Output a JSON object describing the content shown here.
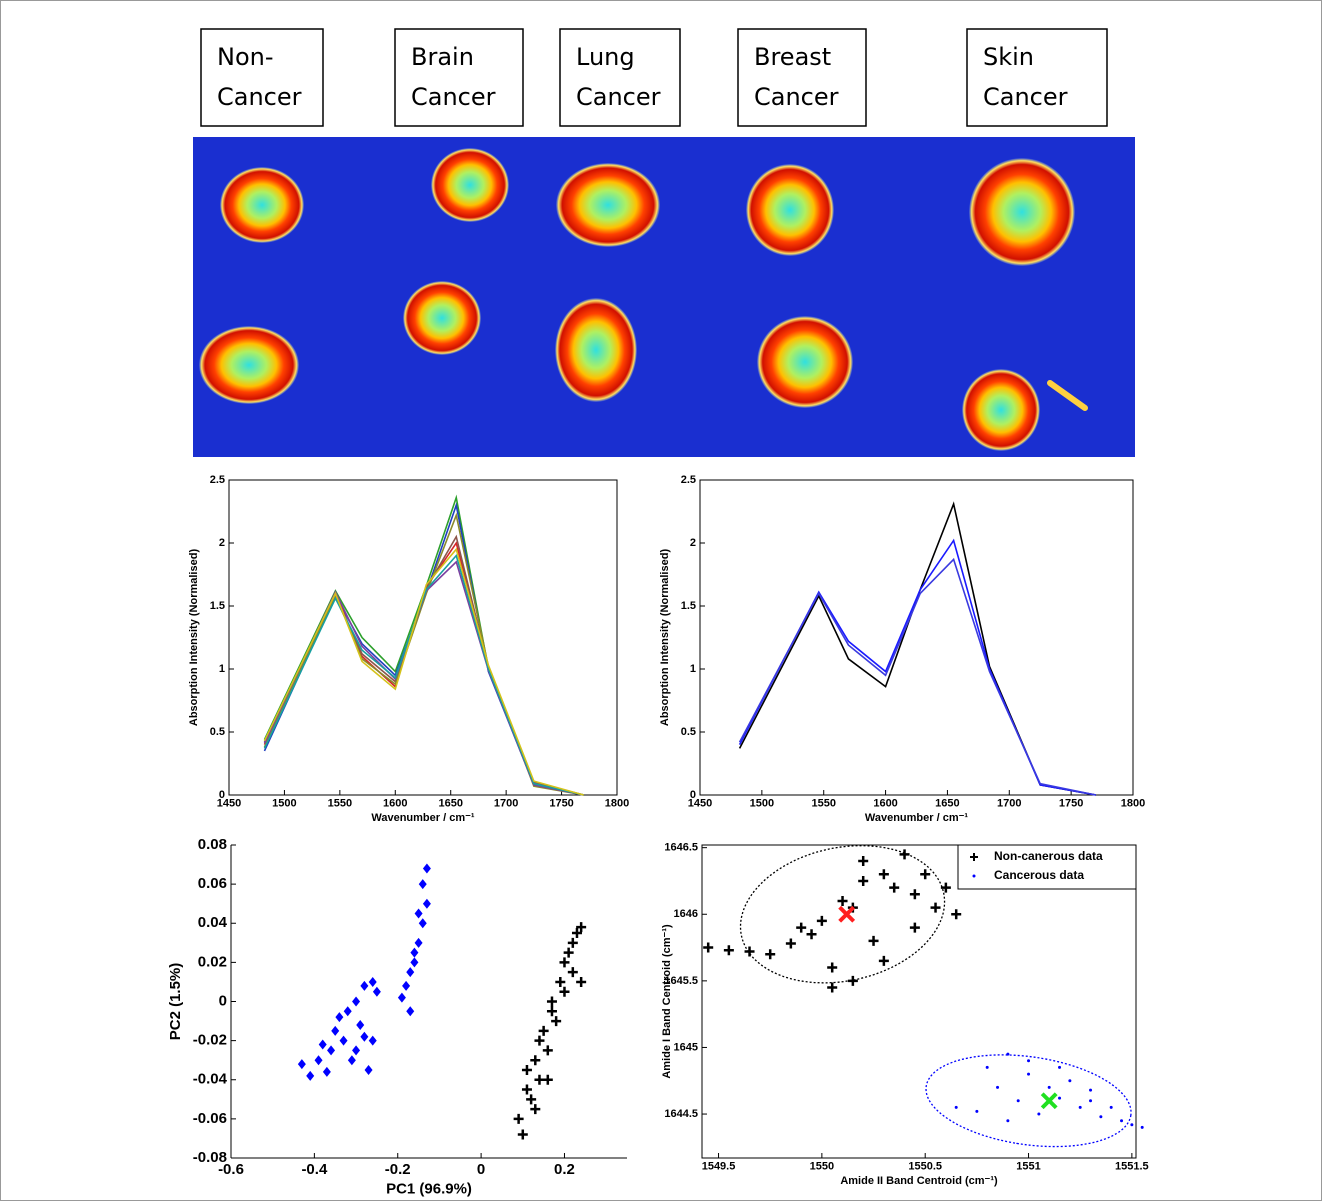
{
  "sample_labels": [
    [
      "Non-",
      "Cancer"
    ],
    [
      "Brain",
      "Cancer"
    ],
    [
      "Lung",
      "Cancer"
    ],
    [
      "Breast",
      "Cancer"
    ],
    [
      "Skin",
      "Cancer"
    ]
  ],
  "chart_data": [
    {
      "type": "line",
      "x_label": "Wavenumber / cm⁻¹",
      "y_label": "Absorption Intensity (Normalised)",
      "x": [
        1482,
        1546,
        1570,
        1600,
        1628,
        1655,
        1684,
        1725,
        1770
      ],
      "xlim": [
        1450,
        1800
      ],
      "xticks": [
        1450,
        1500,
        1550,
        1600,
        1650,
        1700,
        1750,
        1800
      ],
      "ylim": [
        0,
        2.5
      ],
      "yticks": [
        0,
        0.5,
        1,
        1.5,
        2,
        2.5
      ],
      "series": [
        {
          "color": "#2ca02c",
          "values": [
            0.44,
            1.62,
            1.25,
            0.98,
            1.66,
            2.36,
            1.0,
            0.1,
            0
          ]
        },
        {
          "color": "#1f3fbf",
          "values": [
            0.35,
            1.58,
            1.2,
            0.95,
            1.61,
            2.3,
            0.98,
            0.08,
            0
          ]
        },
        {
          "color": "#d62728",
          "values": [
            0.4,
            1.6,
            1.1,
            0.86,
            1.65,
            2.0,
            1.0,
            0.09,
            0
          ]
        },
        {
          "color": "#8c564b",
          "values": [
            0.42,
            1.57,
            1.12,
            0.9,
            1.64,
            2.05,
            1.01,
            0.1,
            0
          ]
        },
        {
          "color": "#8a8a2a",
          "values": [
            0.38,
            1.59,
            1.08,
            0.88,
            1.6,
            2.22,
            1.02,
            0.07,
            0
          ]
        },
        {
          "color": "#7b3fa0",
          "values": [
            0.41,
            1.61,
            1.18,
            0.92,
            1.62,
            1.85,
            0.99,
            0.08,
            0
          ]
        },
        {
          "color": "#17a0a0",
          "values": [
            0.37,
            1.56,
            1.15,
            0.93,
            1.63,
            1.9,
            1.0,
            0.09,
            0
          ]
        },
        {
          "color": "#d4c21a",
          "values": [
            0.43,
            1.6,
            1.06,
            0.84,
            1.67,
            1.95,
            1.03,
            0.11,
            0
          ]
        }
      ]
    },
    {
      "type": "line",
      "x_label": "Wavenumber / cm⁻¹",
      "y_label": "Absorption Intensity (Normalised)",
      "x": [
        1482,
        1546,
        1570,
        1600,
        1628,
        1655,
        1684,
        1725,
        1770
      ],
      "xlim": [
        1450,
        1800
      ],
      "xticks": [
        1450,
        1500,
        1550,
        1600,
        1650,
        1700,
        1750,
        1800
      ],
      "ylim": [
        0,
        2.5
      ],
      "yticks": [
        0,
        0.5,
        1,
        1.5,
        2,
        2.5
      ],
      "series": [
        {
          "color": "#000000",
          "values": [
            0.37,
            1.58,
            1.08,
            0.86,
            1.63,
            2.31,
            1.02,
            0.08,
            0
          ]
        },
        {
          "color": "#1a1aff",
          "values": [
            0.4,
            1.61,
            1.22,
            0.98,
            1.63,
            2.02,
            1.0,
            0.08,
            0
          ]
        },
        {
          "color": "#3a3ae0",
          "values": [
            0.42,
            1.6,
            1.19,
            0.95,
            1.6,
            1.87,
            0.98,
            0.09,
            0
          ]
        }
      ]
    },
    {
      "type": "scatter",
      "x_label": "PC1  (96.9%)",
      "y_label": "PC2  (1.5%)",
      "xlim": [
        -0.6,
        0.35
      ],
      "xticks": [
        -0.6,
        -0.4,
        -0.2,
        0,
        0.2
      ],
      "ylim": [
        -0.08,
        0.08
      ],
      "yticks": [
        -0.08,
        -0.06,
        -0.04,
        -0.02,
        0,
        0.02,
        0.04,
        0.06,
        0.08
      ],
      "series": [
        {
          "color": "#0000ff",
          "marker": "diamond",
          "x": [
            -0.43,
            -0.41,
            -0.39,
            -0.38,
            -0.36,
            -0.35,
            -0.33,
            -0.32,
            -0.31,
            -0.3,
            -0.29,
            -0.28,
            -0.27,
            -0.26,
            -0.25,
            -0.34,
            -0.3,
            -0.37,
            -0.28,
            -0.26,
            -0.19,
            -0.18,
            -0.17,
            -0.16,
            -0.15,
            -0.14,
            -0.13,
            -0.14,
            -0.13,
            -0.16,
            -0.17,
            -0.15
          ],
          "y": [
            -0.032,
            -0.038,
            -0.03,
            -0.022,
            -0.025,
            -0.015,
            -0.02,
            -0.005,
            -0.03,
            0.0,
            -0.012,
            0.008,
            -0.035,
            -0.02,
            0.005,
            -0.008,
            -0.025,
            -0.036,
            -0.018,
            0.01,
            0.002,
            0.008,
            0.015,
            0.025,
            0.03,
            0.04,
            0.05,
            0.06,
            0.068,
            0.02,
            -0.005,
            0.045
          ]
        },
        {
          "color": "#000000",
          "marker": "plus",
          "x": [
            0.09,
            0.1,
            0.11,
            0.12,
            0.13,
            0.14,
            0.15,
            0.16,
            0.17,
            0.18,
            0.19,
            0.2,
            0.21,
            0.22,
            0.23,
            0.24,
            0.11,
            0.14,
            0.17,
            0.2,
            0.22,
            0.24,
            0.13,
            0.16
          ],
          "y": [
            -0.06,
            -0.068,
            -0.045,
            -0.05,
            -0.03,
            -0.04,
            -0.015,
            -0.025,
            0.0,
            -0.01,
            0.01,
            0.005,
            0.025,
            0.015,
            0.035,
            0.038,
            -0.035,
            -0.02,
            -0.005,
            0.02,
            0.03,
            0.01,
            -0.055,
            -0.04
          ]
        }
      ]
    },
    {
      "type": "scatter",
      "x_label": "Amide II Band Centroid (cm⁻¹)",
      "y_label": "Amide I Band Centroid (cm⁻¹)",
      "xlim": [
        1549.42,
        1551.52
      ],
      "xticks": [
        1549.5,
        1550,
        1550.5,
        1551,
        1551.5
      ],
      "ylim": [
        1644.17,
        1646.52
      ],
      "yticks": [
        1644.5,
        1645,
        1645.5,
        1646,
        1646.5
      ],
      "legend": "upper right",
      "series": [
        {
          "name": "Non-canerous data",
          "color": "#000000",
          "marker": "plus",
          "x": [
            1549.45,
            1549.55,
            1549.65,
            1549.75,
            1549.85,
            1549.9,
            1550.0,
            1550.05,
            1550.1,
            1550.15,
            1550.2,
            1550.25,
            1550.3,
            1550.35,
            1550.4,
            1550.45,
            1550.5,
            1550.55,
            1550.6,
            1550.65,
            1549.95,
            1550.05,
            1550.15,
            1550.3,
            1550.45,
            1550.2
          ],
          "y": [
            1645.75,
            1645.73,
            1645.72,
            1645.7,
            1645.78,
            1645.9,
            1645.95,
            1645.6,
            1646.1,
            1645.5,
            1646.25,
            1645.8,
            1646.3,
            1646.2,
            1646.45,
            1646.15,
            1646.3,
            1646.05,
            1646.2,
            1646.0,
            1645.85,
            1645.45,
            1646.05,
            1645.65,
            1645.9,
            1646.4
          ],
          "ellipse": {
            "center": [
              1550.1,
              1646.0
            ],
            "radii": [
              0.5,
              0.5
            ],
            "angle": -12
          },
          "centroid": [
            1550.12,
            1646.0
          ],
          "centroid_color": "#ff2020"
        },
        {
          "name": "Cancerous data",
          "color": "#0000ff",
          "marker": "dot",
          "x": [
            1550.65,
            1550.75,
            1550.8,
            1550.85,
            1550.9,
            1550.95,
            1551.0,
            1551.05,
            1551.1,
            1551.15,
            1551.2,
            1551.25,
            1551.3,
            1551.35,
            1551.4,
            1551.45,
            1551.5,
            1551.55,
            1550.9,
            1551.0,
            1551.15,
            1551.3
          ],
          "y": [
            1644.55,
            1644.52,
            1644.85,
            1644.7,
            1644.95,
            1644.6,
            1644.8,
            1644.5,
            1644.7,
            1644.62,
            1644.75,
            1644.55,
            1644.6,
            1644.48,
            1644.55,
            1644.45,
            1644.42,
            1644.4,
            1644.45,
            1644.9,
            1644.85,
            1644.68
          ],
          "ellipse": {
            "center": [
              1551.0,
              1644.6
            ],
            "radii": [
              0.5,
              0.33
            ],
            "angle": 8
          },
          "centroid": [
            1551.1,
            1644.6
          ],
          "centroid_color": "#20e020"
        }
      ]
    }
  ]
}
